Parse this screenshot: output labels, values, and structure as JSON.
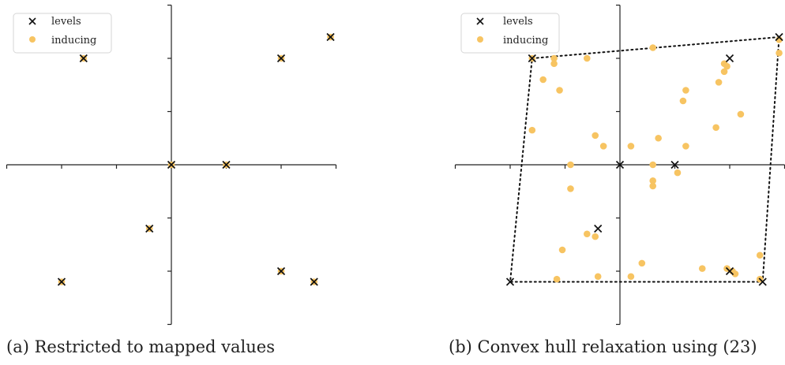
{
  "marker_colors": {
    "levels": "#111111",
    "inducing": "#f7c462",
    "hull": "#111111"
  },
  "chart_data": [
    {
      "type": "scatter",
      "caption": "(a) Restricted to mapped values",
      "xlim": [
        -3,
        3
      ],
      "ylim": [
        -3,
        3
      ],
      "grid": false,
      "legend": {
        "position": "top-left",
        "entries": [
          "levels",
          "inducing"
        ]
      },
      "series": [
        {
          "name": "levels",
          "marker": "x",
          "points": [
            [
              -1.6,
              2.0
            ],
            [
              2.0,
              2.0
            ],
            [
              2.9,
              2.4
            ],
            [
              0.0,
              0.0
            ],
            [
              1.0,
              0.0
            ],
            [
              -0.4,
              -1.2
            ],
            [
              -2.0,
              -2.2
            ],
            [
              2.0,
              -2.0
            ],
            [
              2.6,
              -2.2
            ]
          ]
        },
        {
          "name": "inducing",
          "marker": "circle",
          "points": [
            [
              -1.6,
              2.0
            ],
            [
              2.0,
              2.0
            ],
            [
              2.9,
              2.4
            ],
            [
              0.0,
              0.0
            ],
            [
              1.0,
              0.0
            ],
            [
              -0.4,
              -1.2
            ],
            [
              -2.0,
              -2.2
            ],
            [
              2.0,
              -2.0
            ],
            [
              2.6,
              -2.2
            ]
          ]
        }
      ]
    },
    {
      "type": "scatter",
      "caption": "(b) Convex hull relaxation using (23)",
      "xlim": [
        -3,
        3
      ],
      "ylim": [
        -3,
        3
      ],
      "grid": false,
      "legend": {
        "position": "top-left",
        "entries": [
          "levels",
          "inducing"
        ]
      },
      "series": [
        {
          "name": "levels",
          "marker": "x",
          "points": [
            [
              -1.6,
              2.0
            ],
            [
              2.0,
              2.0
            ],
            [
              2.9,
              2.4
            ],
            [
              0.0,
              0.0
            ],
            [
              1.0,
              0.0
            ],
            [
              -0.4,
              -1.2
            ],
            [
              -2.0,
              -2.2
            ],
            [
              2.0,
              -2.0
            ],
            [
              2.6,
              -2.2
            ]
          ]
        },
        {
          "name": "inducing",
          "marker": "circle",
          "points": [
            [
              -1.6,
              2.0
            ],
            [
              -1.2,
              2.0
            ],
            [
              -1.2,
              1.9
            ],
            [
              -0.6,
              2.0
            ],
            [
              0.6,
              2.2
            ],
            [
              2.9,
              2.35
            ],
            [
              2.9,
              2.1
            ],
            [
              1.9,
              1.9
            ],
            [
              1.95,
              1.85
            ],
            [
              1.9,
              1.75
            ],
            [
              1.8,
              1.55
            ],
            [
              -1.4,
              1.6
            ],
            [
              -1.1,
              1.4
            ],
            [
              1.2,
              1.4
            ],
            [
              1.15,
              1.2
            ],
            [
              2.2,
              0.95
            ],
            [
              -1.6,
              0.65
            ],
            [
              -0.45,
              0.55
            ],
            [
              1.75,
              0.7
            ],
            [
              0.7,
              0.5
            ],
            [
              -0.3,
              0.35
            ],
            [
              0.2,
              0.35
            ],
            [
              1.2,
              0.35
            ],
            [
              0.6,
              0.0
            ],
            [
              1.05,
              -0.15
            ],
            [
              0.6,
              -0.3
            ],
            [
              0.6,
              -0.4
            ],
            [
              -0.9,
              -0.45
            ],
            [
              -0.6,
              -1.3
            ],
            [
              -0.45,
              -1.35
            ],
            [
              0.4,
              -1.85
            ],
            [
              -1.05,
              -1.6
            ],
            [
              1.5,
              -1.95
            ],
            [
              1.95,
              -1.95
            ],
            [
              2.05,
              -2.0
            ],
            [
              2.1,
              -2.05
            ],
            [
              2.55,
              -1.7
            ],
            [
              2.55,
              -2.15
            ],
            [
              -1.15,
              -2.15
            ],
            [
              -0.4,
              -2.1
            ],
            [
              0.2,
              -2.1
            ],
            [
              -0.9,
              0.0
            ]
          ]
        },
        {
          "name": "",
          "marker": "none",
          "line": "dotted",
          "points": [
            [
              -1.6,
              2.0
            ],
            [
              2.9,
              2.4
            ],
            [
              2.6,
              -2.2
            ],
            [
              -2.0,
              -2.2
            ],
            [
              -1.6,
              2.0
            ]
          ]
        }
      ]
    }
  ]
}
